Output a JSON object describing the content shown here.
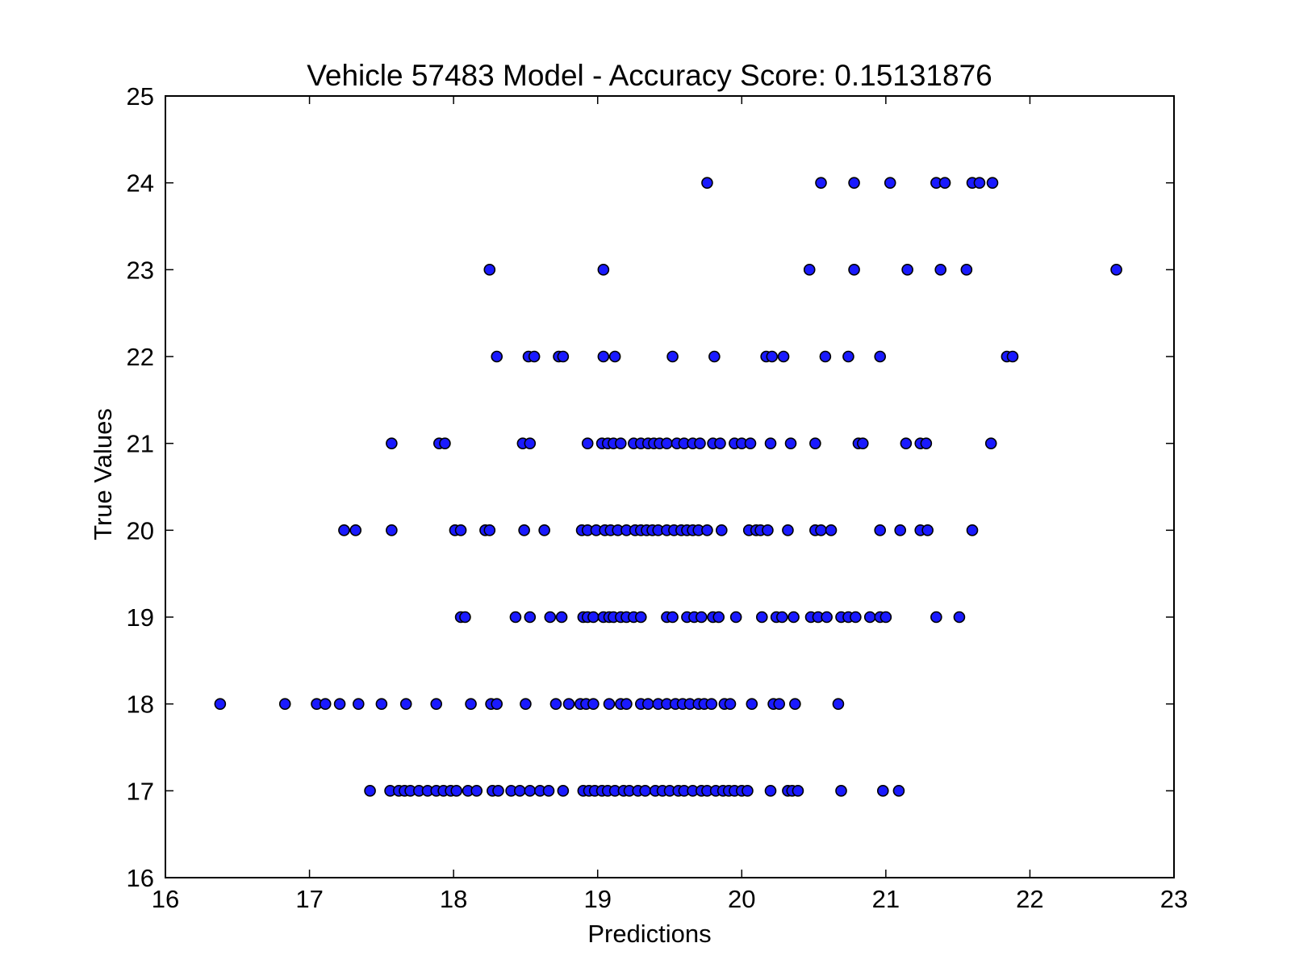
{
  "chart_data": {
    "type": "scatter",
    "title": "Vehicle 57483 Model - Accuracy Score: 0.15131876",
    "xlabel": "Predictions",
    "ylabel": "True Values",
    "xlim": [
      16,
      23
    ],
    "ylim": [
      16,
      25
    ],
    "xticks": [
      "16",
      "17",
      "18",
      "19",
      "20",
      "21",
      "22",
      "23"
    ],
    "yticks": [
      "16",
      "17",
      "18",
      "19",
      "20",
      "21",
      "22",
      "23",
      "24",
      "25"
    ],
    "grid": false,
    "legend": "none",
    "marker_fill": "#1a1aff",
    "marker_edge": "#000000",
    "series": [
      {
        "points": [
          [
            19.76,
            24
          ],
          [
            20.55,
            24
          ],
          [
            20.78,
            24
          ],
          [
            21.03,
            24
          ],
          [
            21.35,
            24
          ],
          [
            21.41,
            24
          ],
          [
            21.6,
            24
          ],
          [
            21.65,
            24
          ],
          [
            21.74,
            24
          ],
          [
            18.25,
            23
          ],
          [
            19.04,
            23
          ],
          [
            20.47,
            23
          ],
          [
            20.78,
            23
          ],
          [
            21.15,
            23
          ],
          [
            21.38,
            23
          ],
          [
            21.56,
            23
          ],
          [
            22.6,
            23
          ],
          [
            18.3,
            22
          ],
          [
            18.52,
            22
          ],
          [
            18.56,
            22
          ],
          [
            18.73,
            22
          ],
          [
            18.76,
            22
          ],
          [
            19.04,
            22
          ],
          [
            19.12,
            22
          ],
          [
            19.52,
            22
          ],
          [
            19.81,
            22
          ],
          [
            20.17,
            22
          ],
          [
            20.21,
            22
          ],
          [
            20.29,
            22
          ],
          [
            20.58,
            22
          ],
          [
            20.74,
            22
          ],
          [
            20.96,
            22
          ],
          [
            21.84,
            22
          ],
          [
            21.88,
            22
          ],
          [
            17.57,
            21
          ],
          [
            17.9,
            21
          ],
          [
            17.94,
            21
          ],
          [
            18.48,
            21
          ],
          [
            18.53,
            21
          ],
          [
            18.93,
            21
          ],
          [
            19.03,
            21
          ],
          [
            19.07,
            21
          ],
          [
            19.11,
            21
          ],
          [
            19.16,
            21
          ],
          [
            19.25,
            21
          ],
          [
            19.3,
            21
          ],
          [
            19.35,
            21
          ],
          [
            19.39,
            21
          ],
          [
            19.43,
            21
          ],
          [
            19.48,
            21
          ],
          [
            19.55,
            21
          ],
          [
            19.6,
            21
          ],
          [
            19.66,
            21
          ],
          [
            19.71,
            21
          ],
          [
            19.8,
            21
          ],
          [
            19.85,
            21
          ],
          [
            19.95,
            21
          ],
          [
            20.0,
            21
          ],
          [
            20.06,
            21
          ],
          [
            20.2,
            21
          ],
          [
            20.34,
            21
          ],
          [
            20.51,
            21
          ],
          [
            20.81,
            21
          ],
          [
            20.84,
            21
          ],
          [
            21.14,
            21
          ],
          [
            21.24,
            21
          ],
          [
            21.28,
            21
          ],
          [
            21.73,
            21
          ],
          [
            17.24,
            20
          ],
          [
            17.32,
            20
          ],
          [
            17.57,
            20
          ],
          [
            18.01,
            20
          ],
          [
            18.05,
            20
          ],
          [
            18.22,
            20
          ],
          [
            18.25,
            20
          ],
          [
            18.49,
            20
          ],
          [
            18.63,
            20
          ],
          [
            18.89,
            20
          ],
          [
            18.93,
            20
          ],
          [
            18.99,
            20
          ],
          [
            19.05,
            20
          ],
          [
            19.09,
            20
          ],
          [
            19.14,
            20
          ],
          [
            19.2,
            20
          ],
          [
            19.26,
            20
          ],
          [
            19.3,
            20
          ],
          [
            19.34,
            20
          ],
          [
            19.38,
            20
          ],
          [
            19.42,
            20
          ],
          [
            19.48,
            20
          ],
          [
            19.53,
            20
          ],
          [
            19.58,
            20
          ],
          [
            19.62,
            20
          ],
          [
            19.66,
            20
          ],
          [
            19.7,
            20
          ],
          [
            19.76,
            20
          ],
          [
            19.86,
            20
          ],
          [
            20.05,
            20
          ],
          [
            20.1,
            20
          ],
          [
            20.13,
            20
          ],
          [
            20.18,
            20
          ],
          [
            20.32,
            20
          ],
          [
            20.51,
            20
          ],
          [
            20.55,
            20
          ],
          [
            20.62,
            20
          ],
          [
            20.96,
            20
          ],
          [
            21.1,
            20
          ],
          [
            21.24,
            20
          ],
          [
            21.29,
            20
          ],
          [
            21.6,
            20
          ],
          [
            18.05,
            19
          ],
          [
            18.08,
            19
          ],
          [
            18.43,
            19
          ],
          [
            18.53,
            19
          ],
          [
            18.67,
            19
          ],
          [
            18.75,
            19
          ],
          [
            18.9,
            19
          ],
          [
            18.93,
            19
          ],
          [
            18.97,
            19
          ],
          [
            19.04,
            19
          ],
          [
            19.08,
            19
          ],
          [
            19.11,
            19
          ],
          [
            19.16,
            19
          ],
          [
            19.2,
            19
          ],
          [
            19.25,
            19
          ],
          [
            19.3,
            19
          ],
          [
            19.48,
            19
          ],
          [
            19.52,
            19
          ],
          [
            19.62,
            19
          ],
          [
            19.67,
            19
          ],
          [
            19.72,
            19
          ],
          [
            19.8,
            19
          ],
          [
            19.84,
            19
          ],
          [
            19.96,
            19
          ],
          [
            20.14,
            19
          ],
          [
            20.24,
            19
          ],
          [
            20.28,
            19
          ],
          [
            20.36,
            19
          ],
          [
            20.48,
            19
          ],
          [
            20.53,
            19
          ],
          [
            20.59,
            19
          ],
          [
            20.69,
            19
          ],
          [
            20.74,
            19
          ],
          [
            20.79,
            19
          ],
          [
            20.89,
            19
          ],
          [
            20.96,
            19
          ],
          [
            21.0,
            19
          ],
          [
            21.35,
            19
          ],
          [
            21.51,
            19
          ],
          [
            16.38,
            18
          ],
          [
            16.83,
            18
          ],
          [
            17.05,
            18
          ],
          [
            17.11,
            18
          ],
          [
            17.21,
            18
          ],
          [
            17.34,
            18
          ],
          [
            17.5,
            18
          ],
          [
            17.67,
            18
          ],
          [
            17.88,
            18
          ],
          [
            18.12,
            18
          ],
          [
            18.26,
            18
          ],
          [
            18.3,
            18
          ],
          [
            18.5,
            18
          ],
          [
            18.71,
            18
          ],
          [
            18.8,
            18
          ],
          [
            18.88,
            18
          ],
          [
            18.92,
            18
          ],
          [
            18.97,
            18
          ],
          [
            19.08,
            18
          ],
          [
            19.16,
            18
          ],
          [
            19.2,
            18
          ],
          [
            19.3,
            18
          ],
          [
            19.35,
            18
          ],
          [
            19.42,
            18
          ],
          [
            19.48,
            18
          ],
          [
            19.54,
            18
          ],
          [
            19.59,
            18
          ],
          [
            19.64,
            18
          ],
          [
            19.7,
            18
          ],
          [
            19.74,
            18
          ],
          [
            19.79,
            18
          ],
          [
            19.88,
            18
          ],
          [
            19.92,
            18
          ],
          [
            20.07,
            18
          ],
          [
            20.22,
            18
          ],
          [
            20.26,
            18
          ],
          [
            20.37,
            18
          ],
          [
            20.67,
            18
          ],
          [
            17.42,
            17
          ],
          [
            17.56,
            17
          ],
          [
            17.62,
            17
          ],
          [
            17.66,
            17
          ],
          [
            17.7,
            17
          ],
          [
            17.76,
            17
          ],
          [
            17.82,
            17
          ],
          [
            17.88,
            17
          ],
          [
            17.93,
            17
          ],
          [
            17.98,
            17
          ],
          [
            18.02,
            17
          ],
          [
            18.1,
            17
          ],
          [
            18.16,
            17
          ],
          [
            18.27,
            17
          ],
          [
            18.31,
            17
          ],
          [
            18.4,
            17
          ],
          [
            18.46,
            17
          ],
          [
            18.53,
            17
          ],
          [
            18.6,
            17
          ],
          [
            18.66,
            17
          ],
          [
            18.76,
            17
          ],
          [
            18.9,
            17
          ],
          [
            18.94,
            17
          ],
          [
            18.98,
            17
          ],
          [
            19.03,
            17
          ],
          [
            19.07,
            17
          ],
          [
            19.12,
            17
          ],
          [
            19.18,
            17
          ],
          [
            19.22,
            17
          ],
          [
            19.28,
            17
          ],
          [
            19.33,
            17
          ],
          [
            19.4,
            17
          ],
          [
            19.45,
            17
          ],
          [
            19.5,
            17
          ],
          [
            19.56,
            17
          ],
          [
            19.6,
            17
          ],
          [
            19.66,
            17
          ],
          [
            19.72,
            17
          ],
          [
            19.76,
            17
          ],
          [
            19.82,
            17
          ],
          [
            19.87,
            17
          ],
          [
            19.91,
            17
          ],
          [
            19.95,
            17
          ],
          [
            20.0,
            17
          ],
          [
            20.04,
            17
          ],
          [
            20.2,
            17
          ],
          [
            20.32,
            17
          ],
          [
            20.35,
            17
          ],
          [
            20.39,
            17
          ],
          [
            20.69,
            17
          ],
          [
            20.98,
            17
          ],
          [
            21.09,
            17
          ]
        ]
      }
    ]
  }
}
